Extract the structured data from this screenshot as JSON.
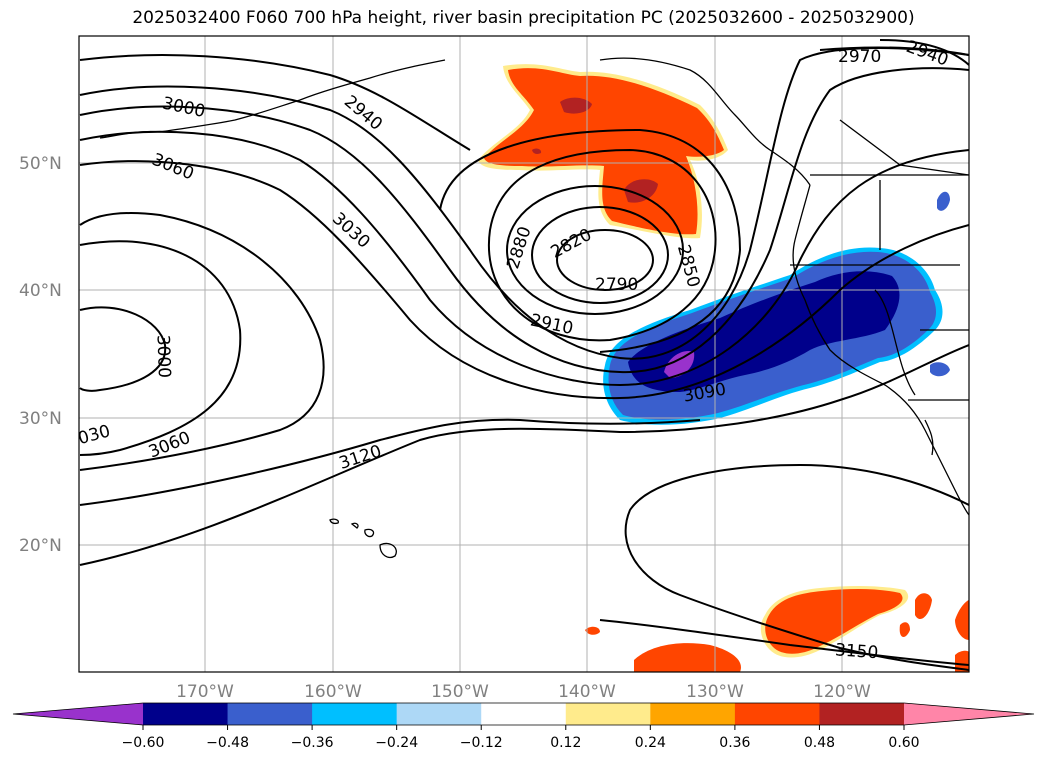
{
  "title": "2025032400 F060 700 hPa height, river basin precipitation PC (2025032600 - 2025032900)",
  "lat_labels": [
    "50°N",
    "40°N",
    "30°N",
    "20°N"
  ],
  "lon_labels": [
    "170°W",
    "160°W",
    "150°W",
    "140°W",
    "130°W",
    "120°W"
  ],
  "contour_labels": [
    "2970",
    "2940",
    "3000",
    "2940",
    "3060",
    "3030",
    "2880",
    "2820",
    "2850",
    "2790",
    "2910",
    "3000",
    "3090",
    "030",
    "3060",
    "3120",
    "3150"
  ],
  "colorbar": {
    "ticks": [
      "−0.60",
      "−0.48",
      "−0.36",
      "−0.24",
      "−0.12",
      "0.12",
      "0.24",
      "0.36",
      "0.48",
      "0.60"
    ],
    "colors": [
      "#9932cc",
      "#00008b",
      "#3a5fcd",
      "#00bfff",
      "#add8f6",
      "#ffffff",
      "#ffeb8c",
      "#ffa500",
      "#ff4500",
      "#b22222",
      "#ff85a8"
    ]
  },
  "colors": {
    "positive_shading": "#ff4500",
    "strong_positive": "#b22222",
    "negative_shading": "#3a5fcd",
    "strong_negative": "#00008b",
    "extreme_negative": "#9932cc",
    "gridlines": "#b0b0b0",
    "contours": "#000000"
  }
}
